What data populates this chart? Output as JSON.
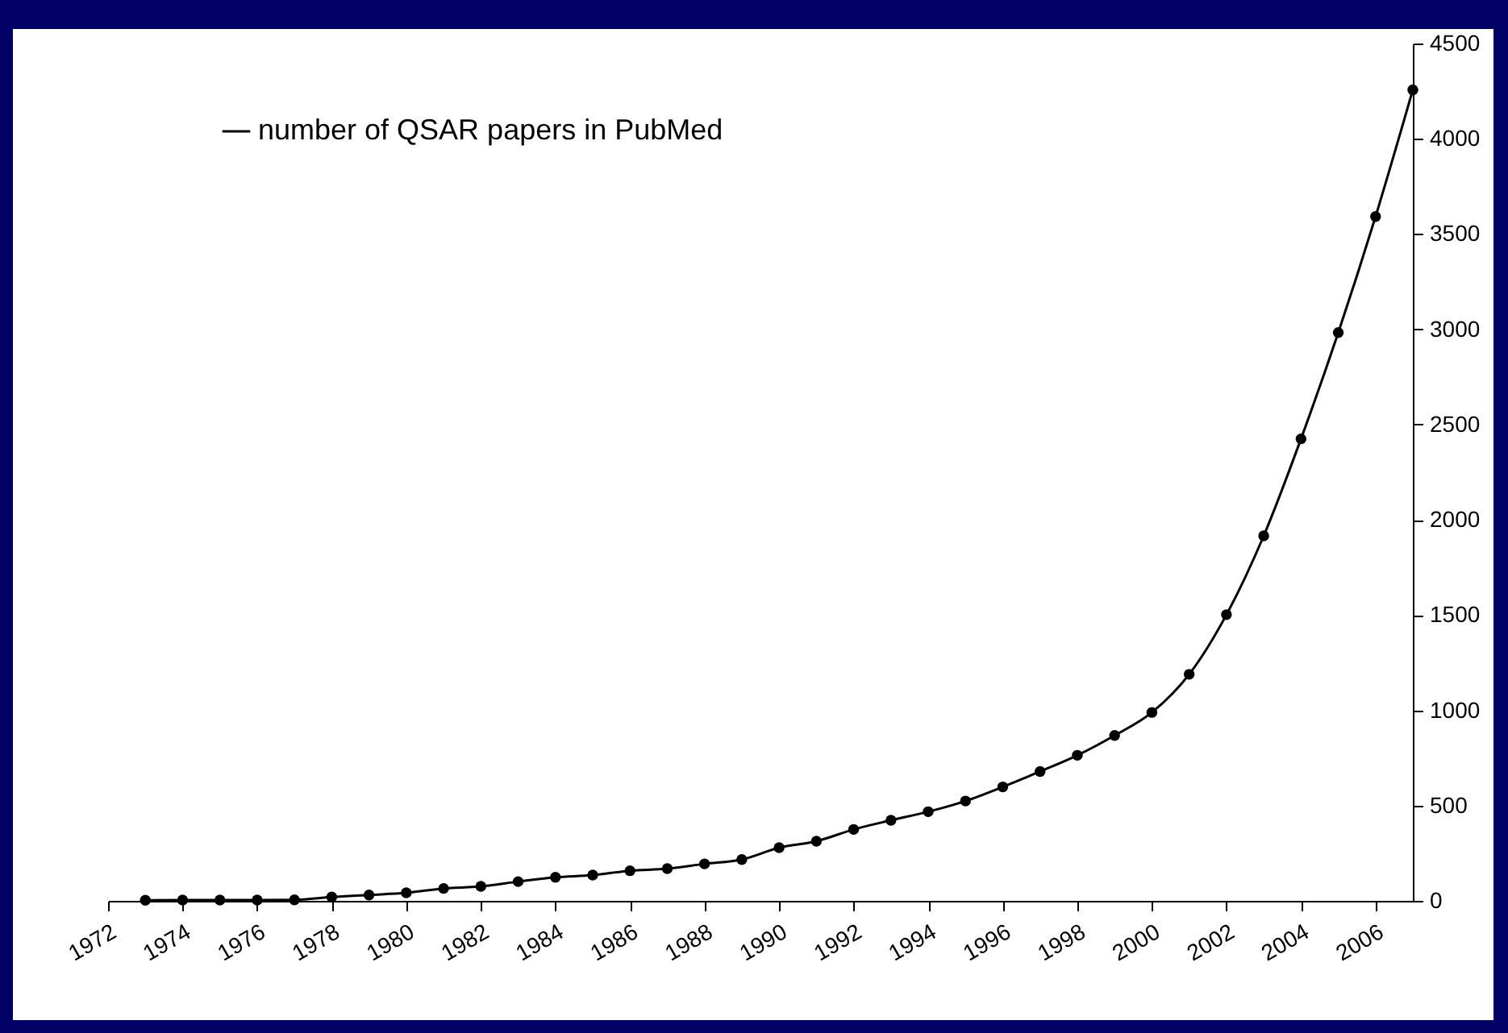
{
  "chart_data": {
    "type": "line",
    "x": [
      1973,
      1974,
      1975,
      1976,
      1977,
      1978,
      1979,
      1980,
      1981,
      1982,
      1983,
      1984,
      1985,
      1986,
      1987,
      1988,
      1989,
      1990,
      1991,
      1992,
      1993,
      1994,
      1995,
      1996,
      1997,
      1998,
      1999,
      2000,
      2001,
      2002,
      2003,
      2004,
      2005,
      2006,
      2007
    ],
    "series": [
      {
        "name": "number of QSAR papers in PubMed",
        "color": "#000000",
        "values": [
          3,
          4,
          4,
          4,
          5,
          20,
          31,
          42,
          65,
          76,
          101,
          124,
          135,
          158,
          169,
          194,
          217,
          279,
          313,
          375,
          423,
          468,
          524,
          598,
          679,
          764,
          868,
          989,
          1189,
          1502,
          1916,
          2425,
          2983,
          3592,
          4257
        ]
      }
    ],
    "xlim": [
      1972,
      2007
    ],
    "xticks": [
      1972,
      1974,
      1976,
      1978,
      1980,
      1982,
      1984,
      1986,
      1988,
      1990,
      1992,
      1994,
      1996,
      1998,
      2000,
      2002,
      2004,
      2006
    ],
    "ylim": [
      0,
      4500
    ],
    "yticks": [
      0,
      500,
      1000,
      1500,
      2000,
      2500,
      3000,
      3500,
      4000,
      4500
    ],
    "grid": false,
    "legend": "top left",
    "marker": "circle",
    "line_style": "solid"
  }
}
